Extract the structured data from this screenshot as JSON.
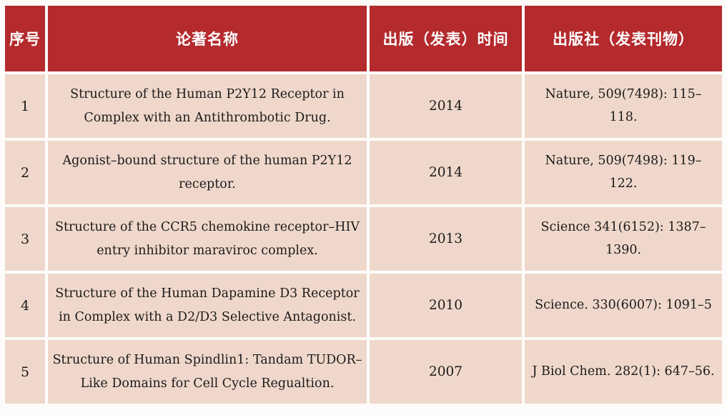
{
  "colors": {
    "header_bg": "#b42a2d",
    "header_text": "#ffffff",
    "cell_bg": "#efd8cb",
    "cell_text": "#1c1a1a",
    "gap": "#fdfcfa"
  },
  "table": {
    "headers": {
      "num": "序号",
      "title": "论著名称",
      "year": "出版（发表）时间",
      "journal": "出版社（发表刊物）"
    },
    "rows": [
      {
        "num": "1",
        "title": "Structure of the Human P2Y12 Receptor in Complex with an Antithrombotic Drug.",
        "year": "2014",
        "journal": "Nature, 509(7498): 115–118."
      },
      {
        "num": "2",
        "title": "Agonist–bound structure of the human P2Y12 receptor.",
        "year": "2014",
        "journal": "Nature, 509(7498): 119–122."
      },
      {
        "num": "3",
        "title": "Structure of the CCR5 chemokine receptor–HIV entry inhibitor maraviroc complex.",
        "year": "2013",
        "journal": "Science 341(6152): 1387–1390."
      },
      {
        "num": "4",
        "title": "Structure of the Human Dapamine D3 Receptor in Complex with a D2/D3 Selective Antagonist.",
        "year": "2010",
        "journal": "Science. 330(6007): 1091–5"
      },
      {
        "num": "5",
        "title": "Structure of Human Spindlin1: Tandam TUDOR–Like Domains for Cell Cycle Regualtion.",
        "year": "2007",
        "journal": "J Biol Chem. 282(1): 647–56."
      }
    ]
  }
}
